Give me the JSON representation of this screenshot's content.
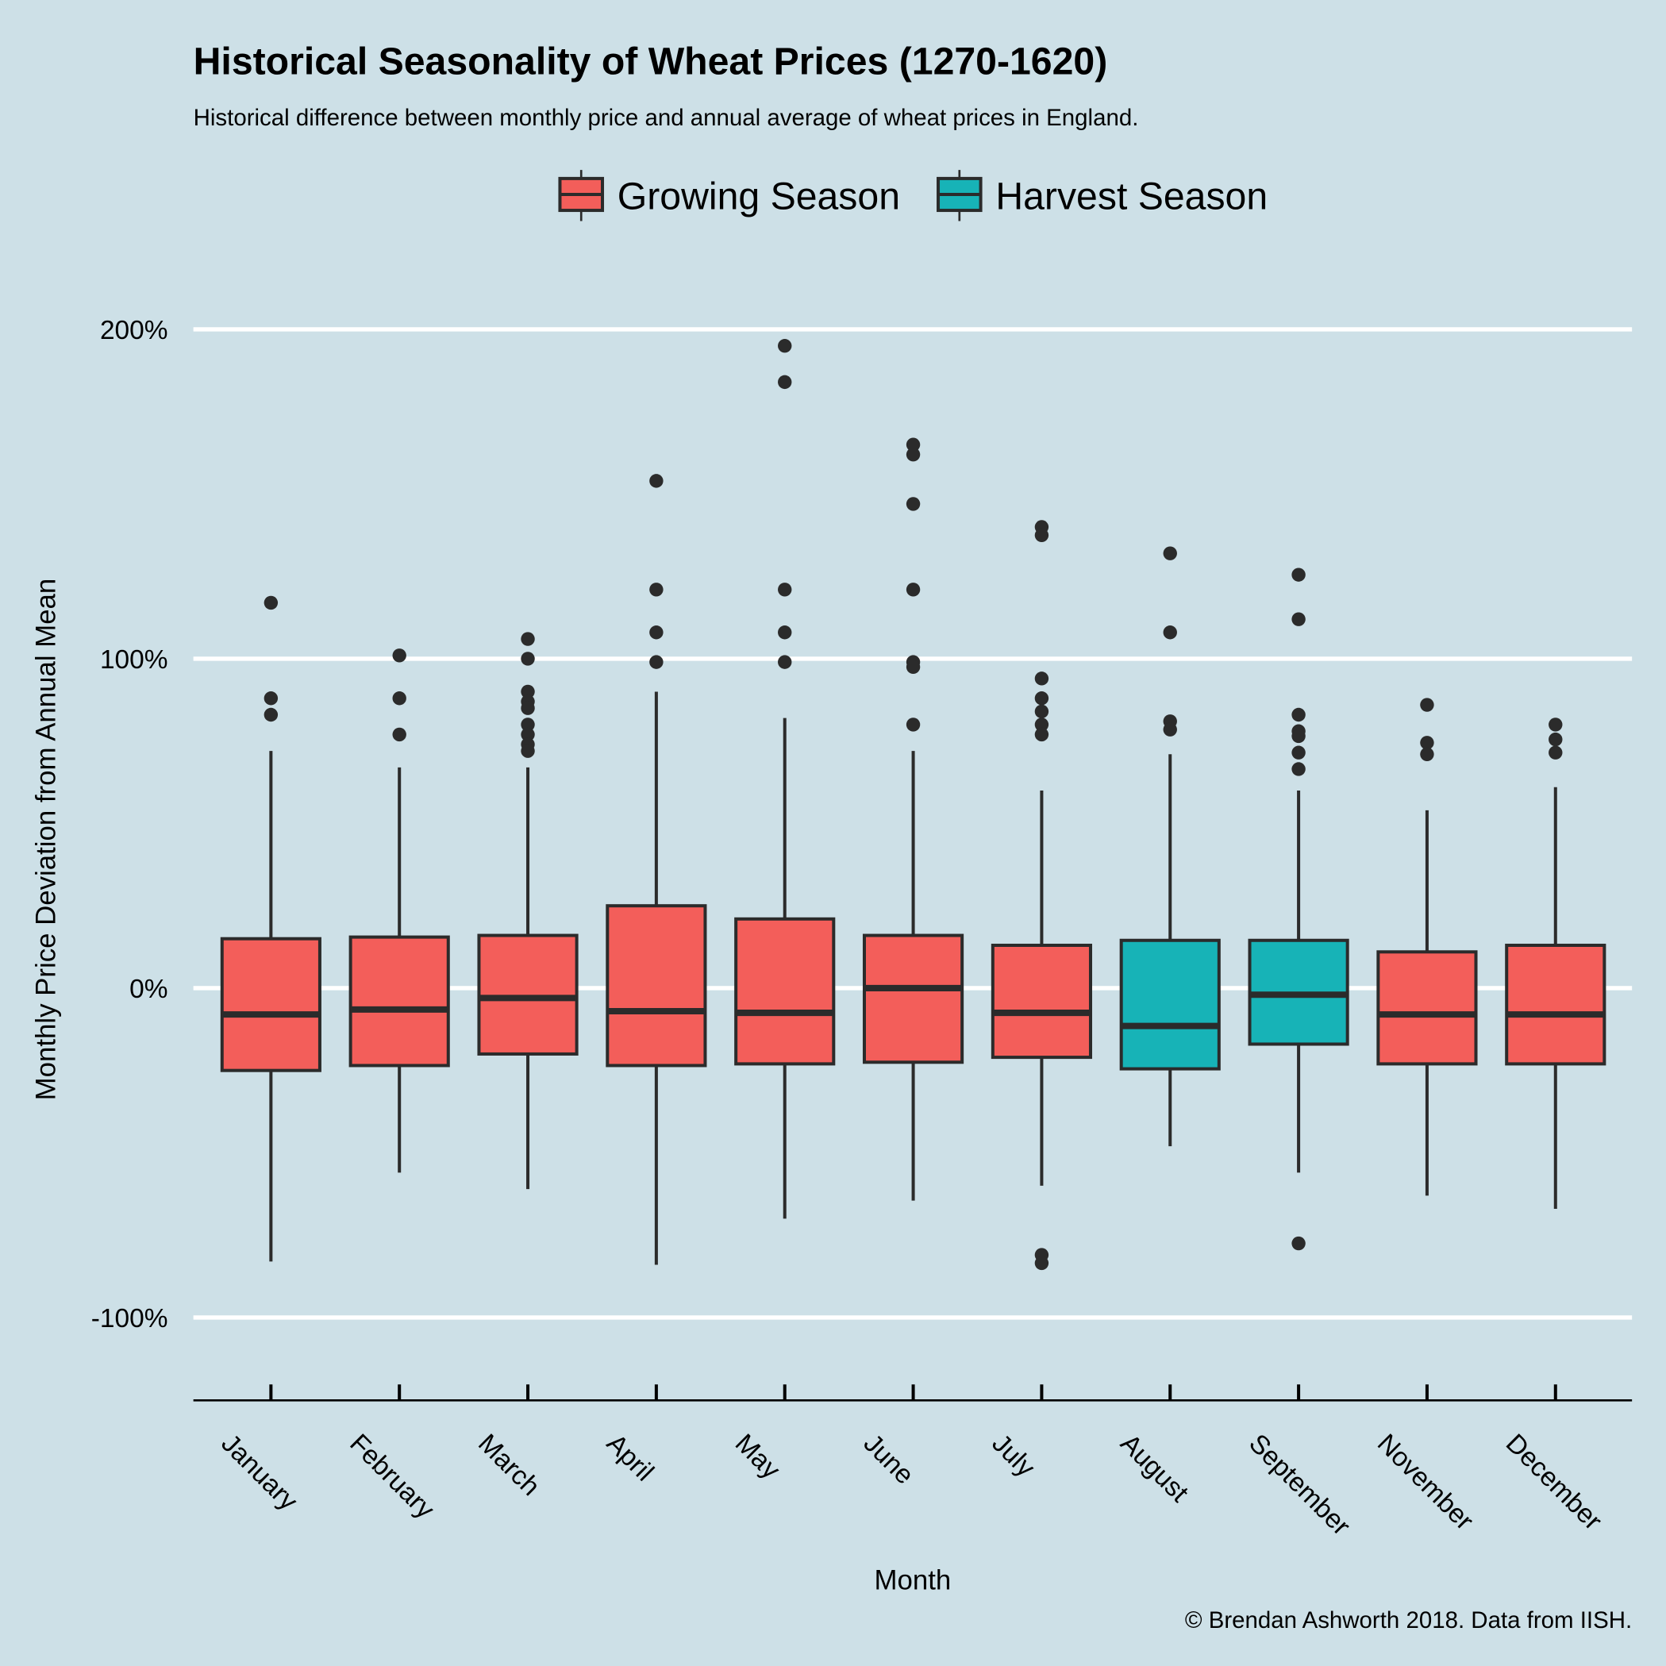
{
  "chart_data": {
    "type": "box",
    "title": "Historical Seasonality of Wheat Prices (1270-1620)",
    "subtitle": "Historical difference between monthly price and annual average of wheat prices in England.",
    "caption": "© Brendan Ashworth 2018. Data from IISH.",
    "xlabel": "Month",
    "ylabel": "Monthly Price Deviation from Annual Mean",
    "ylim": [
      -125,
      225
    ],
    "yticks": [
      -100,
      0,
      100,
      200
    ],
    "ytick_labels": [
      "-100%",
      "0%",
      "100%",
      "200%"
    ],
    "grid": "horizontal major",
    "legend": {
      "placement": "top",
      "entries": [
        {
          "name": "Growing Season",
          "color": "#F35E5A"
        },
        {
          "name": "Harvest Season",
          "color": "#17B3B7"
        }
      ]
    },
    "colors": {
      "background": "#CDE0E7",
      "grid": "#FFFFFF",
      "line": "#2B2B2B"
    },
    "categories": [
      "January",
      "February",
      "March",
      "April",
      "May",
      "June",
      "July",
      "August",
      "September",
      "November",
      "December"
    ],
    "boxes": [
      {
        "month": "January",
        "season": "Growing Season",
        "whisker_low": -83,
        "q1": -25,
        "median": -8,
        "q3": 15,
        "whisker_high": 72,
        "outliers": [
          117,
          88,
          83
        ]
      },
      {
        "month": "February",
        "season": "Growing Season",
        "whisker_low": -56,
        "q1": -23.5,
        "median": -6.5,
        "q3": 15.5,
        "whisker_high": 67,
        "outliers": [
          101,
          88,
          77
        ]
      },
      {
        "month": "March",
        "season": "Growing Season",
        "whisker_low": -61,
        "q1": -20,
        "median": -3,
        "q3": 16,
        "whisker_high": 67,
        "outliers": [
          106,
          100,
          90,
          87,
          85,
          80,
          77,
          74,
          72
        ]
      },
      {
        "month": "April",
        "season": "Growing Season",
        "whisker_low": -84,
        "q1": -23.5,
        "median": -7,
        "q3": 25,
        "whisker_high": 90,
        "outliers": [
          154,
          121,
          108,
          99
        ]
      },
      {
        "month": "May",
        "season": "Growing Season",
        "whisker_low": -70,
        "q1": -23,
        "median": -7.5,
        "q3": 21,
        "whisker_high": 82,
        "outliers": [
          195,
          184,
          121,
          108,
          99
        ]
      },
      {
        "month": "June",
        "season": "Growing Season",
        "whisker_low": -64.5,
        "q1": -22.5,
        "median": 0,
        "q3": 16,
        "whisker_high": 72,
        "outliers": [
          165,
          162,
          147,
          121,
          99,
          97.5,
          80
        ]
      },
      {
        "month": "July",
        "season": "Growing Season",
        "whisker_low": -60,
        "q1": -21,
        "median": -7.5,
        "q3": 13,
        "whisker_high": 60,
        "outliers": [
          140,
          137.5,
          94,
          88,
          84,
          80,
          77,
          -81,
          -83.5
        ]
      },
      {
        "month": "August",
        "season": "Harvest Season",
        "whisker_low": -48,
        "q1": -24.5,
        "median": -11.5,
        "q3": 14.5,
        "whisker_high": 71,
        "outliers": [
          132,
          108,
          81,
          78.5
        ]
      },
      {
        "month": "September",
        "season": "Harvest Season",
        "whisker_low": -56,
        "q1": -17,
        "median": -2,
        "q3": 14.5,
        "whisker_high": 60,
        "outliers": [
          125.5,
          112,
          83,
          78,
          76.5,
          71.5,
          66.5,
          -77.5
        ]
      },
      {
        "month": "November",
        "season": "Growing Season",
        "whisker_low": -63,
        "q1": -23,
        "median": -8,
        "q3": 11,
        "whisker_high": 54,
        "outliers": [
          86,
          74.5,
          71
        ]
      },
      {
        "month": "December",
        "season": "Growing Season",
        "whisker_low": -67,
        "q1": -23,
        "median": -8,
        "q3": 13,
        "whisker_high": 61,
        "outliers": [
          80,
          75.5,
          71.5
        ]
      }
    ]
  }
}
